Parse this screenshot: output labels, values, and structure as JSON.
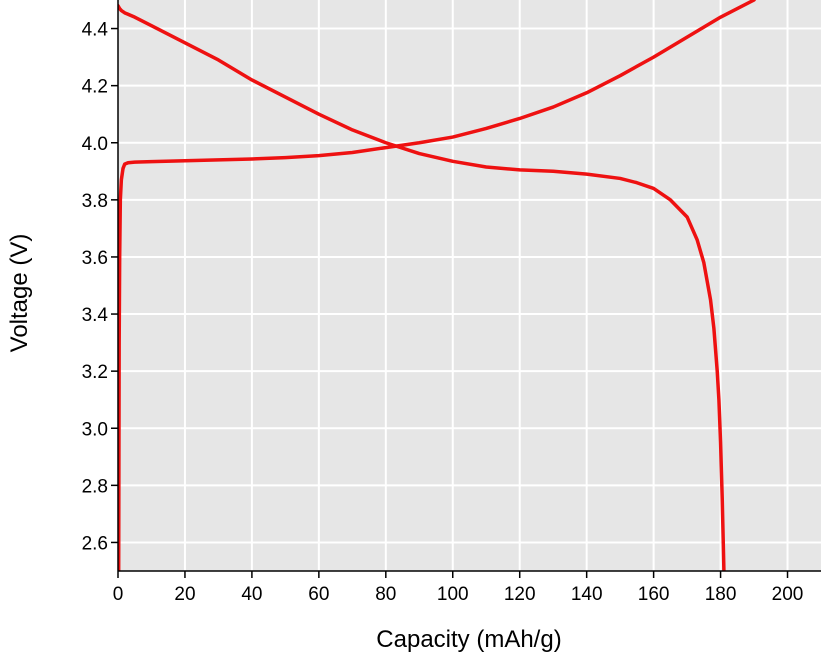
{
  "colors": {
    "plot_background": "#e6e6e6",
    "grid": "#ffffff",
    "axis": "#000000",
    "curve": "#ee1111"
  },
  "chart_data": {
    "type": "line",
    "title": "",
    "xlabel": "Capacity (mAh/g)",
    "ylabel": "Voltage (V)",
    "xlim": [
      0,
      210
    ],
    "ylim": [
      2.5,
      4.5
    ],
    "x_ticks": [
      0,
      20,
      40,
      60,
      80,
      100,
      120,
      140,
      160,
      180,
      200
    ],
    "y_ticks": [
      2.6,
      2.8,
      3.0,
      3.2,
      3.4,
      3.6,
      3.8,
      4.0,
      4.2,
      4.4
    ],
    "x_tick_labels": [
      "0",
      "20",
      "40",
      "60",
      "80",
      "100",
      "120",
      "140",
      "160",
      "180",
      "200"
    ],
    "y_tick_labels": [
      "2.6",
      "2.8",
      "3.0",
      "3.2",
      "3.4",
      "3.6",
      "3.8",
      "4.0",
      "4.2",
      "4.4"
    ],
    "grid": true,
    "legend": "none",
    "series": [
      {
        "x": [
          0.2,
          0.35,
          0.5,
          0.7,
          1.0,
          1.5,
          2.0,
          3,
          5,
          10,
          20,
          30,
          40,
          50,
          60,
          70,
          80,
          90,
          100,
          110,
          120,
          130,
          140,
          150,
          160,
          170,
          180,
          190
        ],
        "y": [
          2.5,
          3.3,
          3.6,
          3.8,
          3.87,
          3.91,
          3.925,
          3.93,
          3.932,
          3.934,
          3.937,
          3.94,
          3.943,
          3.948,
          3.955,
          3.966,
          3.983,
          4.0,
          4.02,
          4.05,
          4.085,
          4.125,
          4.175,
          4.235,
          4.3,
          4.37,
          4.44,
          4.5
        ]
      },
      {
        "x": [
          0,
          0.5,
          1,
          2,
          5,
          10,
          20,
          30,
          40,
          50,
          60,
          70,
          80,
          90,
          100,
          110,
          120,
          130,
          140,
          150,
          155,
          160,
          165,
          170,
          173,
          175,
          177,
          178,
          179,
          179.5,
          180,
          180.5,
          181
        ],
        "y": [
          4.48,
          4.47,
          4.463,
          4.455,
          4.44,
          4.41,
          4.35,
          4.29,
          4.22,
          4.16,
          4.1,
          4.045,
          4.0,
          3.962,
          3.935,
          3.915,
          3.905,
          3.9,
          3.89,
          3.875,
          3.86,
          3.84,
          3.8,
          3.74,
          3.66,
          3.58,
          3.45,
          3.35,
          3.2,
          3.1,
          2.95,
          2.75,
          2.5
        ]
      }
    ]
  }
}
